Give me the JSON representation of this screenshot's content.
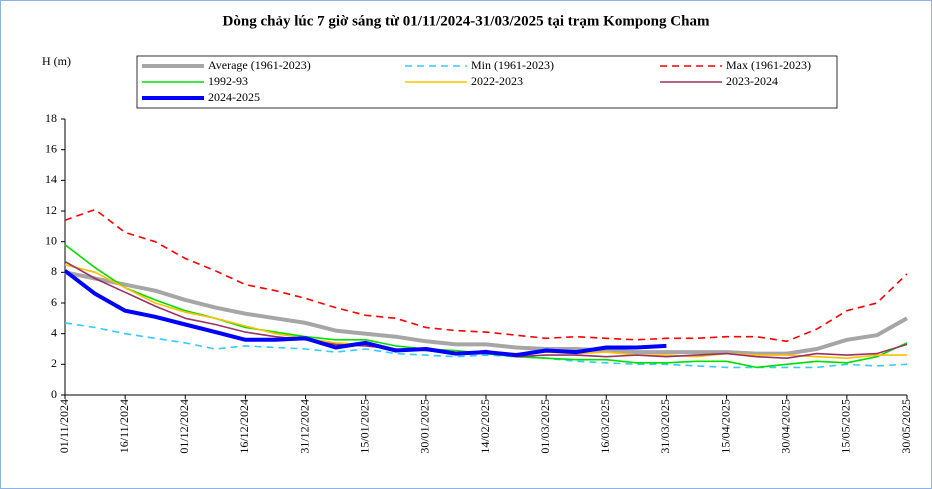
{
  "chart_data": {
    "type": "line",
    "title": "Dòng chảy lúc 7 giờ sáng từ 01/11/2024-31/03/2025 tại trạm Kompong Cham",
    "y_label": "H (m)",
    "categories": [
      "01/11/2024",
      null,
      "16/11/2024",
      null,
      "01/12/2024",
      null,
      "16/12/2024",
      null,
      "31/12/2024",
      null,
      "15/01/2025",
      null,
      "30/01/2025",
      null,
      "14/02/2025",
      null,
      "01/03/2025",
      null,
      "16/03/2025",
      null,
      "31/03/2025",
      null,
      "15/04/2025",
      null,
      "30/04/2025",
      null,
      "15/05/2025",
      null,
      "30/05/2025"
    ],
    "ylim": [
      0,
      18
    ],
    "yticks": [
      0,
      2,
      4,
      6,
      8,
      10,
      12,
      14,
      16,
      18
    ],
    "series": [
      {
        "name": "Average (1961-2023)",
        "color": "#a6a6a6",
        "bold": true,
        "dashed": false,
        "values": [
          8.0,
          7.6,
          7.2,
          6.8,
          6.2,
          5.7,
          5.3,
          5.0,
          4.7,
          4.2,
          4.0,
          3.8,
          3.5,
          3.3,
          3.3,
          3.1,
          3.0,
          3.0,
          2.9,
          2.8,
          2.8,
          2.8,
          2.8,
          2.7,
          2.7,
          3.0,
          3.6,
          3.9,
          5.0
        ]
      },
      {
        "name": "Min (1961-2023)",
        "color": "#33ccff",
        "bold": false,
        "dashed": true,
        "values": [
          4.7,
          4.4,
          4.0,
          3.7,
          3.4,
          3.0,
          3.2,
          3.1,
          3.0,
          2.8,
          3.0,
          2.7,
          2.6,
          2.5,
          2.6,
          2.5,
          2.4,
          2.2,
          2.1,
          2.0,
          2.0,
          1.9,
          1.8,
          1.8,
          1.8,
          1.8,
          2.0,
          1.9,
          2.0
        ]
      },
      {
        "name": "Max (1961-2023)",
        "color": "#ff0000",
        "bold": false,
        "dashed": true,
        "values": [
          11.4,
          12.1,
          10.6,
          10.0,
          8.9,
          8.1,
          7.2,
          6.8,
          6.3,
          5.7,
          5.2,
          5.0,
          4.4,
          4.2,
          4.1,
          3.9,
          3.7,
          3.8,
          3.7,
          3.6,
          3.7,
          3.7,
          3.8,
          3.8,
          3.5,
          4.3,
          5.5,
          6.0,
          7.9
        ]
      },
      {
        "name": "1992-93",
        "color": "#00e000",
        "bold": false,
        "dashed": false,
        "values": [
          9.8,
          8.3,
          7.0,
          6.2,
          5.5,
          5.0,
          4.4,
          4.1,
          3.8,
          3.6,
          3.6,
          3.2,
          3.0,
          2.9,
          2.7,
          2.5,
          2.4,
          2.3,
          2.3,
          2.1,
          2.1,
          2.2,
          2.2,
          1.8,
          2.0,
          2.2,
          2.1,
          2.5,
          3.4
        ]
      },
      {
        "name": "2022-2023",
        "color": "#ffc000",
        "bold": false,
        "dashed": false,
        "values": [
          8.5,
          8.0,
          7.0,
          6.0,
          5.4,
          5.0,
          4.5,
          4.0,
          3.7,
          3.4,
          3.3,
          3.0,
          2.9,
          2.8,
          2.8,
          2.7,
          2.8,
          2.7,
          2.8,
          2.6,
          2.6,
          2.5,
          2.7,
          2.6,
          2.6,
          2.5,
          2.4,
          2.6,
          2.6
        ]
      },
      {
        "name": "2023-2024",
        "color": "#993366",
        "bold": false,
        "dashed": false,
        "values": [
          8.7,
          7.6,
          6.7,
          5.8,
          5.0,
          4.6,
          4.1,
          3.8,
          3.6,
          3.3,
          3.2,
          3.0,
          2.9,
          2.7,
          2.9,
          2.5,
          2.6,
          2.6,
          2.5,
          2.6,
          2.5,
          2.6,
          2.7,
          2.5,
          2.4,
          2.7,
          2.6,
          2.7,
          3.3
        ]
      },
      {
        "name": "2024-2025",
        "color": "#0000ff",
        "bold": true,
        "dashed": false,
        "values": [
          8.1,
          6.6,
          5.5,
          5.1,
          4.6,
          4.1,
          3.6,
          3.6,
          3.7,
          3.1,
          3.4,
          2.9,
          3.0,
          2.7,
          2.8,
          2.6,
          2.9,
          2.8,
          3.1,
          3.1,
          3.2,
          null,
          null,
          null,
          null,
          null,
          null,
          null,
          null
        ]
      }
    ]
  }
}
